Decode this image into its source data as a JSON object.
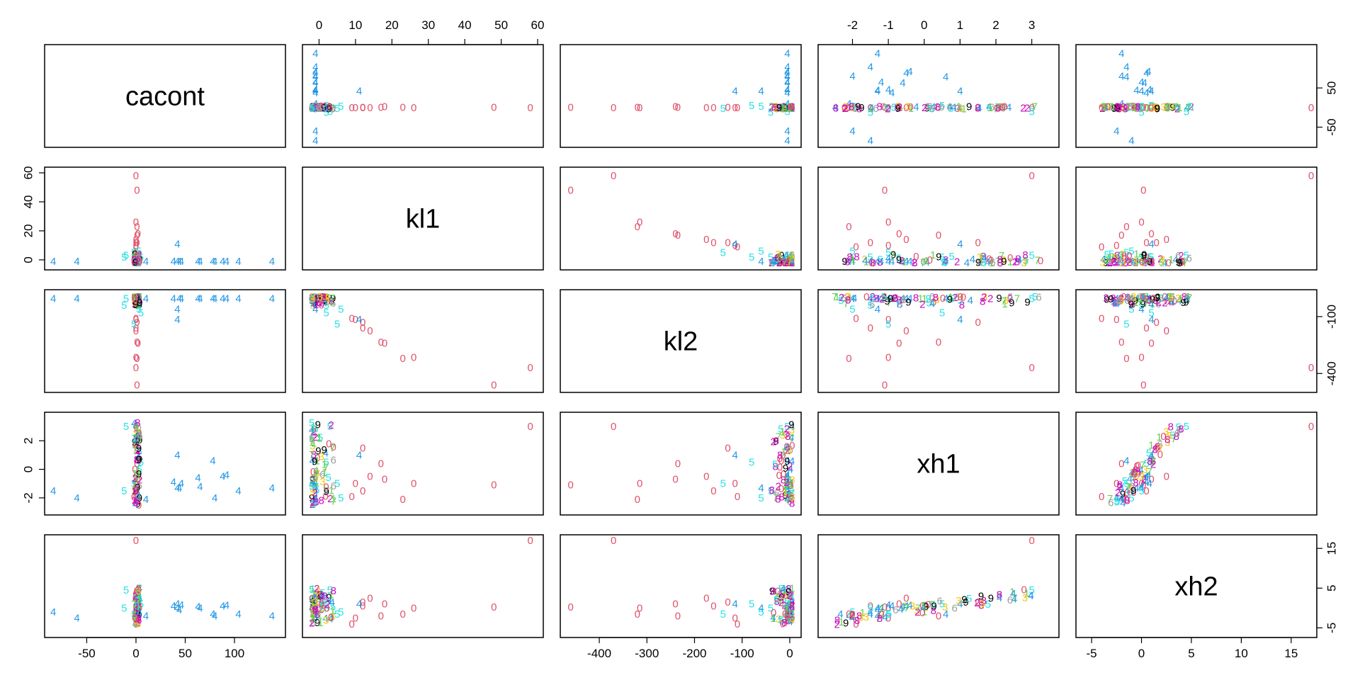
{
  "chart_data": {
    "type": "scatter",
    "variables": [
      "cacont",
      "kl1",
      "kl2",
      "xh1",
      "xh2"
    ],
    "layout": "scatterplot-matrix",
    "ranges": {
      "cacont": [
        -87,
        146
      ],
      "kl1": [
        -3,
        60
      ],
      "kl2": [
        -470,
        12
      ],
      "xh1": [
        -2.8,
        3.6
      ],
      "xh2": [
        -6,
        17
      ]
    },
    "ticks": {
      "cacont": [
        "-50",
        "0",
        "50",
        "100"
      ],
      "kl1": [
        "0",
        "10",
        "20",
        "30",
        "40",
        "50",
        "60"
      ],
      "kl1_left": [
        "0",
        "20",
        "40",
        "60"
      ],
      "kl2": [
        "-400",
        "-300",
        "-200",
        "-100",
        "0"
      ],
      "kl2_right": [
        "-100",
        "-400"
      ],
      "xh1": [
        "-2",
        "-1",
        "0",
        "1",
        "2",
        "3"
      ],
      "xh1_left": [
        "-2",
        "0",
        "2"
      ],
      "xh2": [
        "-5",
        "0",
        "5",
        "10",
        "15"
      ],
      "xh2_right": [
        "-5",
        "5",
        "15"
      ],
      "cacont_right": [
        "-50",
        "50"
      ]
    },
    "groups": [
      {
        "label": "0",
        "color": "#DF536B"
      },
      {
        "label": "4",
        "color": "#2297E6"
      },
      {
        "label": "5",
        "color": "#28E2E5"
      },
      {
        "label": "9",
        "color": "#000000"
      },
      {
        "label": "1",
        "color": "#61D04F"
      },
      {
        "label": "2",
        "color": "#CD0BBC"
      },
      {
        "label": "3",
        "color": "#F5C710"
      },
      {
        "label": "6",
        "color": "#9E9E9E"
      },
      {
        "label": "7",
        "color": "#61D04F"
      },
      {
        "label": "8",
        "color": "#CD0BBC"
      }
    ],
    "points": [
      {
        "g": "0",
        "cacont": 0,
        "kl1": 58,
        "kl2": -370,
        "xh1": 3.0,
        "xh2": 17
      },
      {
        "g": "0",
        "cacont": 1,
        "kl1": 48,
        "kl2": -460,
        "xh1": -1.1,
        "xh2": 0.2
      },
      {
        "g": "0",
        "cacont": 0,
        "kl1": 26,
        "kl2": -315,
        "xh1": -1.0,
        "xh2": 0
      },
      {
        "g": "0",
        "cacont": 1,
        "kl1": 23,
        "kl2": -320,
        "xh1": -2.1,
        "xh2": -1.5
      },
      {
        "g": "0",
        "cacont": 2,
        "kl1": 18,
        "kl2": -240,
        "xh1": -0.7,
        "xh2": 1.0
      },
      {
        "g": "0",
        "cacont": 1,
        "kl1": 17,
        "kl2": -235,
        "xh1": 0.4,
        "xh2": -2.0
      },
      {
        "g": "0",
        "cacont": 0,
        "kl1": 14,
        "kl2": -175,
        "xh1": -0.5,
        "xh2": 2.5
      },
      {
        "g": "0",
        "cacont": 0,
        "kl1": 12,
        "kl2": -160,
        "xh1": -1.5,
        "xh2": 0.5
      },
      {
        "g": "0",
        "cacont": 1,
        "kl1": 12,
        "kl2": -130,
        "xh1": 1.5,
        "xh2": 1.5
      },
      {
        "g": "0",
        "cacont": 0,
        "kl1": 10,
        "kl2": -115,
        "xh1": -1.0,
        "xh2": -2.5
      },
      {
        "g": "0",
        "cacont": 0,
        "kl1": 9,
        "kl2": -110,
        "xh1": -1.9,
        "xh2": -4.0
      },
      {
        "g": "4",
        "cacont": -84,
        "kl1": -1,
        "kl2": -5,
        "xh1": -1.5,
        "xh2": -1
      },
      {
        "g": "4",
        "cacont": -60,
        "kl1": -1,
        "kl2": -5,
        "xh1": -2.0,
        "xh2": -2.5
      },
      {
        "g": "4",
        "cacont": 10,
        "kl1": -1,
        "kl2": -5,
        "xh1": -2.1,
        "xh2": -2.0
      },
      {
        "g": "4",
        "cacont": 38,
        "kl1": -1,
        "kl2": -5,
        "xh1": -0.9,
        "xh2": 0.5
      },
      {
        "g": "4",
        "cacont": 44,
        "kl1": -1,
        "kl2": -5,
        "xh1": -1.3,
        "xh2": -0.5
      },
      {
        "g": "4",
        "cacont": 46,
        "kl1": -1,
        "kl2": -5,
        "xh1": -1.0,
        "xh2": 0.8
      },
      {
        "g": "4",
        "cacont": 63,
        "kl1": -1,
        "kl2": -5,
        "xh1": -0.6,
        "xh2": 0.3
      },
      {
        "g": "4",
        "cacont": 65,
        "kl1": -1,
        "kl2": -5,
        "xh1": -1.2,
        "xh2": 0
      },
      {
        "g": "4",
        "cacont": 78,
        "kl1": -1,
        "kl2": -5,
        "xh1": 0.6,
        "xh2": -1.5
      },
      {
        "g": "4",
        "cacont": 80,
        "kl1": -1,
        "kl2": -5,
        "xh1": -2.0,
        "xh2": -2.0
      },
      {
        "g": "4",
        "cacont": 88,
        "kl1": -1,
        "kl2": -5,
        "xh1": -0.5,
        "xh2": 0.5
      },
      {
        "g": "4",
        "cacont": 92,
        "kl1": -1,
        "kl2": -5,
        "xh1": -0.4,
        "xh2": 0.7
      },
      {
        "g": "4",
        "cacont": 104,
        "kl1": -1,
        "kl2": -5,
        "xh1": -1.5,
        "xh2": -1.5
      },
      {
        "g": "4",
        "cacont": 138,
        "kl1": -1,
        "kl2": -5,
        "xh1": -1.3,
        "xh2": -2.0
      },
      {
        "g": "4",
        "cacont": 42,
        "kl1": 11,
        "kl2": -115,
        "xh1": 1.0,
        "xh2": 1.0
      },
      {
        "g": "4",
        "cacont": 42,
        "kl1": -1,
        "kl2": -60,
        "xh1": -1.3,
        "xh2": 0
      },
      {
        "g": "5",
        "cacont": -10,
        "kl1": 3,
        "kl2": -5,
        "xh1": 3.0,
        "xh2": 4.5
      },
      {
        "g": "5",
        "cacont": -12,
        "kl1": 2,
        "kl2": -40,
        "xh1": -1.5,
        "xh2": 0
      },
      {
        "g": "5",
        "cacont": 3,
        "kl1": 6,
        "kl2": -60,
        "xh1": -2.0,
        "xh2": -1.0
      },
      {
        "g": "5",
        "cacont": -2,
        "kl1": 5,
        "kl2": -140,
        "xh1": -1.0,
        "xh2": -1.5
      },
      {
        "g": "5",
        "cacont": 5,
        "kl1": 2,
        "kl2": -80,
        "xh1": 0.5,
        "xh2": 1.0
      }
    ]
  }
}
